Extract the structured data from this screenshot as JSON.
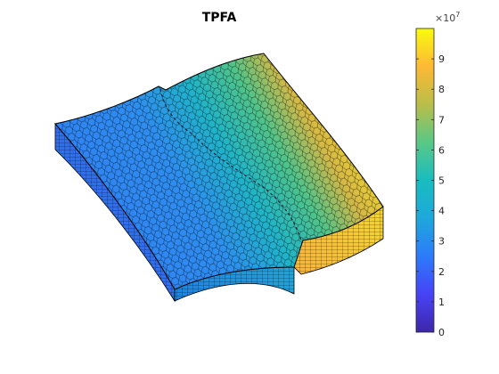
{
  "chart_data": {
    "type": "heatmap",
    "title": "TPFA",
    "colorbar": {
      "range": [
        0,
        100000000
      ],
      "ticks": [
        0,
        1,
        2,
        3,
        4,
        5,
        6,
        7,
        8,
        9
      ],
      "tick_labels": [
        "0",
        "1",
        "2",
        "3",
        "4",
        "5",
        "6",
        "7",
        "8",
        "9"
      ],
      "exponent_base": "×10",
      "exponent_power": "7",
      "colormap": "parula"
    },
    "field_summary": {
      "min_observed": 30000000,
      "max_observed": 100000000,
      "gradient": "increases from front-left edge toward back-right edge"
    }
  },
  "colors": {
    "cell_edge": "#000000",
    "parula_stops": [
      "#3e26a8",
      "#4743f6",
      "#2c7bfa",
      "#1ea8db",
      "#19bdbf",
      "#59c886",
      "#b9be49",
      "#fdb935",
      "#f9fb0e"
    ]
  }
}
